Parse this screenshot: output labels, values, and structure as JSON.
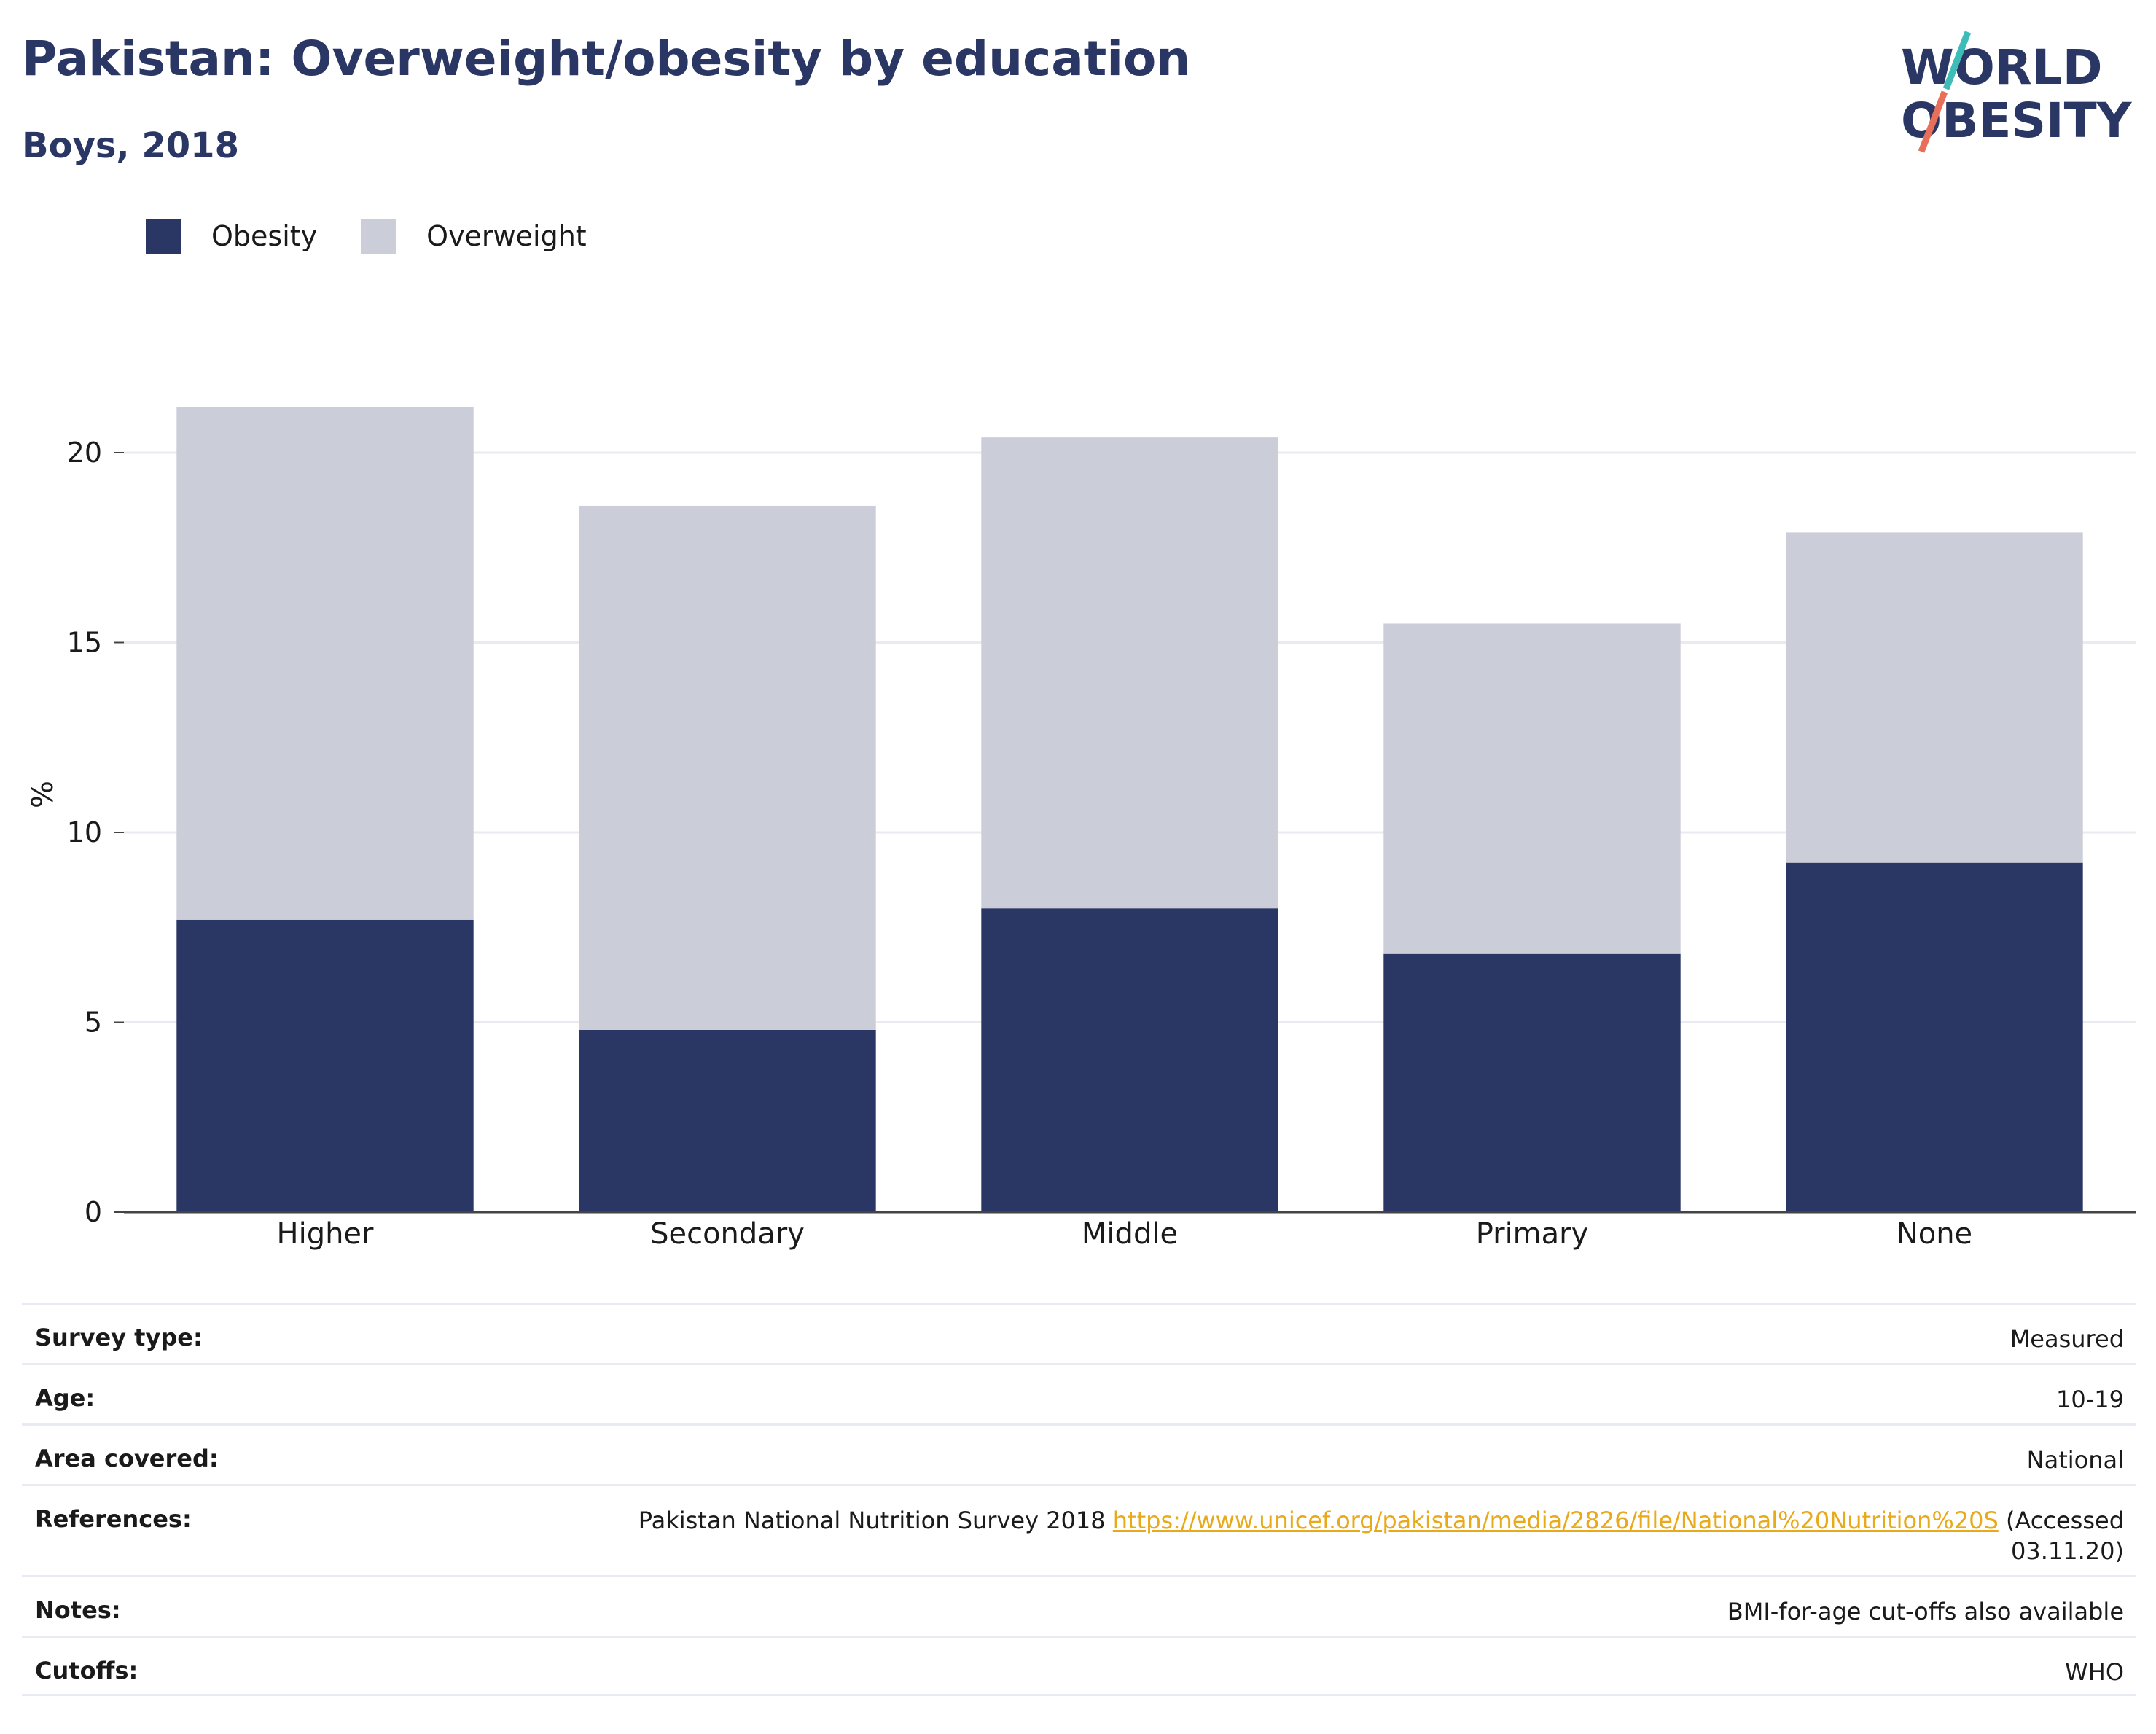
{
  "title": "Pakistan: Overweight/obesity by education",
  "subtitle": "Boys, 2018",
  "logo": {
    "line1": "WORLD",
    "line2": "OBESITY"
  },
  "colors": {
    "obesity": "#2a3663",
    "overweight": "#cbcdd8",
    "title": "#2a3663",
    "link": "#e8a91a",
    "logo_teal": "#3dbcb8",
    "logo_coral": "#e8705a"
  },
  "legend": [
    {
      "label": "Obesity",
      "color": "#2a3663"
    },
    {
      "label": "Overweight",
      "color": "#cbcdd8"
    }
  ],
  "chart_data": {
    "type": "bar",
    "stacked": true,
    "categories": [
      "Higher",
      "Secondary",
      "Middle",
      "Primary",
      "None"
    ],
    "series": [
      {
        "name": "Obesity",
        "values": [
          7.7,
          4.8,
          8.0,
          6.8,
          9.2
        ]
      },
      {
        "name": "Overweight",
        "values": [
          13.5,
          13.8,
          12.4,
          8.7,
          8.7
        ]
      }
    ],
    "ylabel": "%",
    "yticks": [
      0,
      5,
      10,
      15,
      20
    ],
    "ylim": [
      0,
      22
    ],
    "grid": true,
    "legend_position": "top-left"
  },
  "meta": {
    "survey_type": {
      "key": "Survey type:",
      "value": "Measured"
    },
    "age": {
      "key": "Age:",
      "value": "10-19"
    },
    "area": {
      "key": "Area covered:",
      "value": "National"
    },
    "references": {
      "key": "References:",
      "text_before": "Pakistan National Nutrition Survey 2018",
      "link": "https://www.unicef.org/pakistan/media/2826/file/National%20Nutrition%20S",
      "text_after": "(Accessed 03.11.20)"
    },
    "notes": {
      "key": "Notes:",
      "value": "BMI-for-age cut-offs also available"
    },
    "cutoffs": {
      "key": "Cutoffs:",
      "value": "WHO"
    }
  }
}
